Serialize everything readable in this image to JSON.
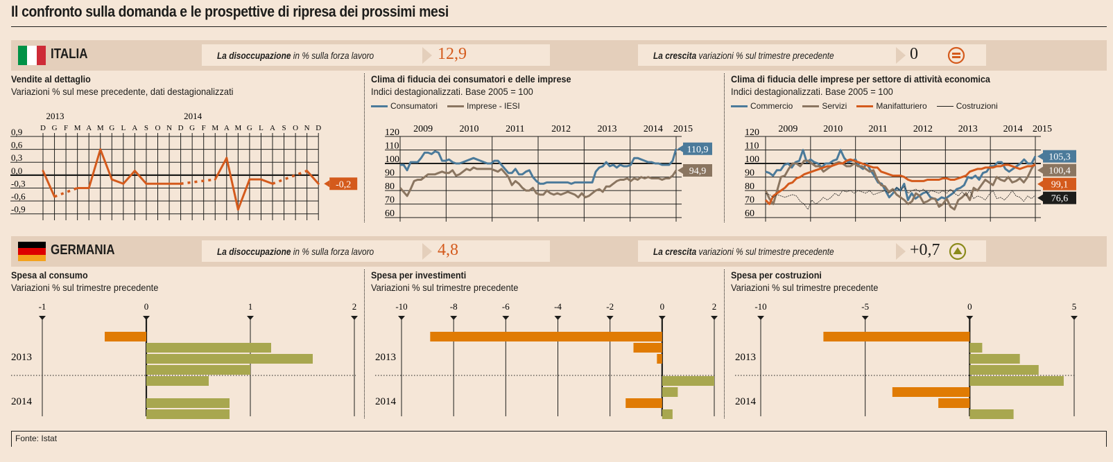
{
  "title": "Il confronto sulla domanda e le prospettive di ripresa dei prossimi mesi",
  "colors": {
    "orange": "#d45a1c",
    "blue": "#4b7a9a",
    "brown": "#8a7560",
    "olive": "#a8a74f",
    "barOrange": "#e07b04",
    "black": "#1d1d1b",
    "band": "#e4cfbb",
    "bg": "#f5e6d7"
  },
  "italia": {
    "country": "ITALIA",
    "flag": [
      "#009246",
      "#ffffff",
      "#ce2b37"
    ],
    "unemployment": {
      "label_bold": "La disoccupazione",
      "label_rest": " in % sulla forza lavoro",
      "value": "12,9"
    },
    "growth": {
      "label_bold": "La crescita",
      "label_rest": " variazioni % sul trimestre precedente",
      "value": "0",
      "icon": "equal-circle-icon"
    }
  },
  "germania": {
    "country": "GERMANIA",
    "flag": [
      "#000000",
      "#dd0000",
      "#f4a21c"
    ],
    "unemployment": {
      "label_bold": "La disoccupazione",
      "label_rest": " in % sulla forza lavoro",
      "value": "4,8"
    },
    "growth": {
      "label_bold": "La crescita",
      "label_rest": " variazioni % sul trimestre precedente",
      "value": "+0,7",
      "icon": "up-triangle-circle-icon"
    }
  },
  "footer": "Fonte: Istat",
  "chart_data": [
    {
      "id": "vendite",
      "type": "line",
      "title": "Vendite al dettaglio",
      "subtitle": "Variazioni % sul mese precedente, dati destagionalizzati",
      "year_labels": [
        {
          "label": "2013",
          "index": 1
        },
        {
          "label": "2014",
          "index": 13
        }
      ],
      "categories": [
        "D",
        "G",
        "F",
        "M",
        "A",
        "M",
        "G",
        "L",
        "A",
        "S",
        "O",
        "N",
        "D",
        "G",
        "F",
        "M",
        "A",
        "M",
        "G",
        "L",
        "A",
        "S",
        "O",
        "N",
        "D"
      ],
      "values": [
        0.1,
        -0.5,
        null,
        -0.3,
        -0.3,
        0.6,
        -0.1,
        -0.2,
        0.1,
        -0.2,
        -0.2,
        -0.2,
        -0.2,
        null,
        null,
        -0.1,
        0.4,
        -0.8,
        -0.1,
        -0.1,
        -0.2,
        null,
        null,
        0.1,
        -0.2
      ],
      "yticks": [
        "0,9",
        "0,6",
        "0,3",
        "0,0",
        "-0,3",
        "-0,6",
        "-0,9"
      ],
      "ylim": [
        -1.05,
        0.9
      ],
      "end_label": "-0,2",
      "color": "#d45a1c"
    },
    {
      "id": "clima",
      "type": "line",
      "title": "Clima di fiducia dei consumatori e delle imprese",
      "subtitle": "Indici destagionalizzati. Base 2005 = 100",
      "x_years": [
        "2009",
        "2010",
        "2011",
        "2012",
        "2013",
        "2014",
        "2015"
      ],
      "yticks": [
        "120",
        "110",
        "100",
        "90",
        "80",
        "70",
        "60"
      ],
      "ylim": [
        57,
        120
      ],
      "reference": 100,
      "series": [
        {
          "name": "Consumatori",
          "color": "#4b7a9a",
          "end_label": "110,9",
          "values": [
            99,
            99,
            95,
            101,
            101,
            101,
            104,
            108,
            108,
            107,
            109,
            108,
            102,
            102,
            103,
            101,
            100,
            100,
            101,
            102,
            103,
            104,
            103,
            102,
            101,
            100,
            100,
            102,
            102,
            99,
            96,
            93,
            93,
            96,
            92,
            92,
            94,
            95,
            90,
            87,
            85,
            85,
            86,
            86,
            86,
            86,
            86,
            86,
            86,
            85,
            86,
            86,
            86,
            86,
            86,
            86,
            94,
            97,
            98,
            101,
            98,
            99,
            97,
            99,
            98,
            98,
            99,
            104,
            104,
            103,
            102,
            101,
            101,
            100,
            100,
            99,
            99,
            99,
            102,
            110.9
          ]
        },
        {
          "name": "Imprese - IESI",
          "color": "#8a7560",
          "end_label": "94,9",
          "values": [
            82,
            79,
            76,
            81,
            87,
            88,
            88,
            90,
            92,
            92,
            92,
            93,
            94,
            93,
            93,
            95,
            91,
            92,
            94,
            96,
            95,
            97,
            96,
            96,
            96,
            96,
            96,
            95,
            94,
            96,
            93,
            90,
            84,
            87,
            85,
            82,
            80,
            80,
            82,
            78,
            77,
            77,
            80,
            78,
            77,
            78,
            77,
            78,
            79,
            78,
            77,
            75,
            78,
            75,
            76,
            78,
            80,
            81,
            79,
            83,
            83,
            85,
            87,
            88,
            88,
            89,
            87,
            89,
            88,
            90,
            89,
            90,
            89,
            89,
            89,
            88,
            89,
            89,
            91,
            94.9
          ]
        }
      ]
    },
    {
      "id": "settori",
      "type": "line",
      "title": "Clima di fiducia delle imprese per settore di attività economica",
      "subtitle": "Indici destagionalizzati. Base 2005 = 100",
      "x_years": [
        "2009",
        "2010",
        "2011",
        "2012",
        "2013",
        "2014",
        "2015"
      ],
      "yticks": [
        "120",
        "110",
        "100",
        "90",
        "80",
        "70",
        "60"
      ],
      "ylim": [
        57,
        120
      ],
      "reference": 100,
      "series": [
        {
          "name": "Commercio",
          "color": "#4b7a9a",
          "style": "thick",
          "end_label": "105,3",
          "values": [
            94,
            93,
            91,
            95,
            95,
            99,
            100,
            97,
            101,
            102,
            110,
            101,
            103,
            101,
            100,
            97,
            100,
            100,
            102,
            103,
            110,
            104,
            101,
            102,
            103,
            98,
            96,
            100,
            95,
            91,
            86,
            85,
            80,
            75,
            78,
            82,
            80,
            85,
            73,
            78,
            74,
            76,
            78,
            79,
            75,
            74,
            73,
            75,
            74,
            76,
            78,
            81,
            82,
            84,
            90,
            89,
            91,
            88,
            93,
            94,
            98,
            98,
            101,
            101,
            96,
            94,
            96,
            98,
            100,
            103,
            100,
            100,
            105.3
          ]
        },
        {
          "name": "Servizi",
          "color": "#8a7560",
          "style": "thick",
          "end_label": "100,4",
          "values": [
            80,
            74,
            70,
            80,
            90,
            91,
            96,
            100,
            100,
            98,
            102,
            102,
            100,
            98,
            98,
            94,
            96,
            98,
            100,
            101,
            100,
            98,
            98,
            100,
            98,
            98,
            96,
            94,
            95,
            88,
            84,
            83,
            79,
            81,
            77,
            75,
            73,
            70,
            72,
            78,
            76,
            71,
            72,
            74,
            74,
            68,
            70,
            74,
            68,
            66,
            73,
            75,
            78,
            73,
            82,
            80,
            84,
            88,
            86,
            84,
            90,
            88,
            87,
            90,
            86,
            87,
            89,
            86,
            90,
            96,
            100.4
          ]
        },
        {
          "name": "Manifatturiero",
          "color": "#d45a1c",
          "style": "thick",
          "end_label": "99,1",
          "values": [
            73,
            70,
            76,
            78,
            80,
            82,
            85,
            86,
            89,
            90,
            92,
            93,
            94,
            95,
            96,
            97,
            98,
            98,
            99,
            100,
            100,
            102,
            103,
            102,
            101,
            100,
            99,
            98,
            97,
            97,
            94,
            93,
            92,
            91,
            91,
            91,
            90,
            88,
            87,
            87,
            87,
            87,
            88,
            88,
            88,
            88,
            89,
            89,
            88,
            88,
            89,
            90,
            91,
            94,
            95,
            96,
            96,
            97,
            97,
            97,
            98,
            98,
            99,
            99,
            98,
            97,
            96,
            97,
            98,
            98,
            99.1
          ]
        },
        {
          "name": "Costruzioni",
          "color": "#1d1d1b",
          "style": "thin",
          "end_label": "76,6",
          "values": [
            78,
            77,
            75,
            77,
            76,
            75,
            76,
            77,
            76,
            72,
            70,
            66,
            73,
            70,
            72,
            75,
            73,
            75,
            78,
            76,
            80,
            79,
            80,
            78,
            80,
            79,
            78,
            80,
            77,
            78,
            79,
            80,
            78,
            80,
            82,
            80,
            83,
            78,
            80,
            81,
            79,
            81,
            78,
            80,
            79,
            78,
            80,
            78,
            81,
            78,
            76,
            79,
            76,
            80,
            74,
            76,
            75,
            73,
            77,
            80,
            74,
            75,
            73,
            76,
            80,
            76,
            75,
            72,
            76,
            74,
            76.6
          ]
        }
      ]
    },
    {
      "id": "consumo",
      "type": "bar",
      "orientation": "horizontal",
      "title": "Spesa al consumo",
      "subtitle": "Variazioni % sul trimestre precedente",
      "xticks": [
        -1,
        0,
        1,
        2
      ],
      "xlim": [
        -1,
        2
      ],
      "groups": [
        {
          "label": "2013",
          "values": [
            -0.4,
            1.2,
            1.6,
            1.0
          ]
        },
        {
          "label": "2014",
          "values": [
            0.6,
            0.0,
            0.8,
            0.8
          ]
        }
      ]
    },
    {
      "id": "investimenti",
      "type": "bar",
      "orientation": "horizontal",
      "title": "Spesa per investimenti",
      "subtitle": "Variazioni % sul trimestre precedente",
      "xticks": [
        -10,
        -8,
        -6,
        -4,
        -2,
        0,
        2
      ],
      "xlim": [
        -10,
        2
      ],
      "groups": [
        {
          "label": "2013",
          "values": [
            -8.9,
            -1.1,
            -0.2,
            0.0
          ]
        },
        {
          "label": "2014",
          "values": [
            2.0,
            0.6,
            -1.4,
            0.4
          ]
        }
      ]
    },
    {
      "id": "costruzioni",
      "type": "bar",
      "orientation": "horizontal",
      "title": "Spesa per costruzioni",
      "subtitle": "Variazioni % sul trimestre precedente",
      "xticks": [
        -10,
        -5,
        0,
        5
      ],
      "xlim": [
        -10,
        5
      ],
      "groups": [
        {
          "label": "2013",
          "values": [
            -7.0,
            0.6,
            2.4,
            3.3
          ]
        },
        {
          "label": "2014",
          "values": [
            4.5,
            -3.7,
            -1.5,
            2.1
          ]
        }
      ]
    }
  ]
}
